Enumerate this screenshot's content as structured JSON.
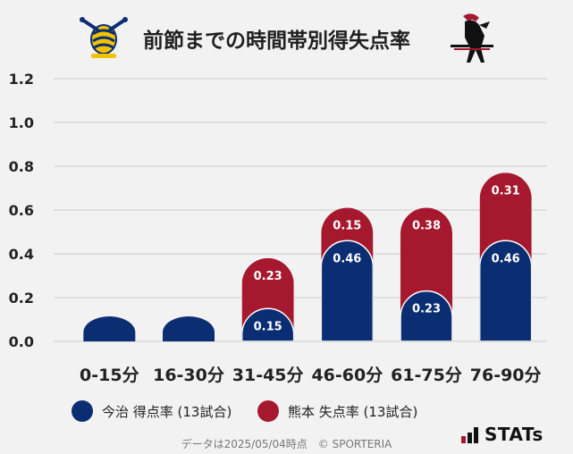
{
  "header": {
    "title": "前節までの時間帯別得失点率",
    "left_logo": "imabari-crest-icon",
    "right_logo": "kumamoto-horse-icon"
  },
  "colors": {
    "imabari": "#0b2d72",
    "kumamoto": "#a6182e",
    "background": "#f2f2f2",
    "grid": "#cccccc"
  },
  "chart_data": {
    "type": "bar",
    "stacked": true,
    "categories": [
      "0-15分",
      "16-30分",
      "31-45分",
      "46-60分",
      "61-75分",
      "76-90分"
    ],
    "series": [
      {
        "name": "今治 得点率 (13試合)",
        "values": [
          0,
          0,
          0.15,
          0.46,
          0.23,
          0.46
        ],
        "labels": [
          "",
          "",
          "0.15",
          "0.46",
          "0.23",
          "0.46"
        ]
      },
      {
        "name": "熊本 失点率 (13試合)",
        "values": [
          0,
          0,
          0.23,
          0.15,
          0.38,
          0.31
        ],
        "labels": [
          "",
          "",
          "0.23",
          "0.15",
          "0.38",
          "0.31"
        ]
      }
    ],
    "yticks": [
      "0.0",
      "0.2",
      "0.4",
      "0.6",
      "0.8",
      "1.0",
      "1.2"
    ],
    "ylim": [
      0,
      1.2
    ],
    "grid": true
  },
  "legend": [
    {
      "label": "今治 得点率 (13試合)",
      "color": "#0b2d72"
    },
    {
      "label": "熊本 失点率 (13試合)",
      "color": "#a6182e"
    }
  ],
  "footer": {
    "text": "データは2025/05/04時点　© SPORTERIA"
  },
  "brand": {
    "text": "STATs"
  }
}
